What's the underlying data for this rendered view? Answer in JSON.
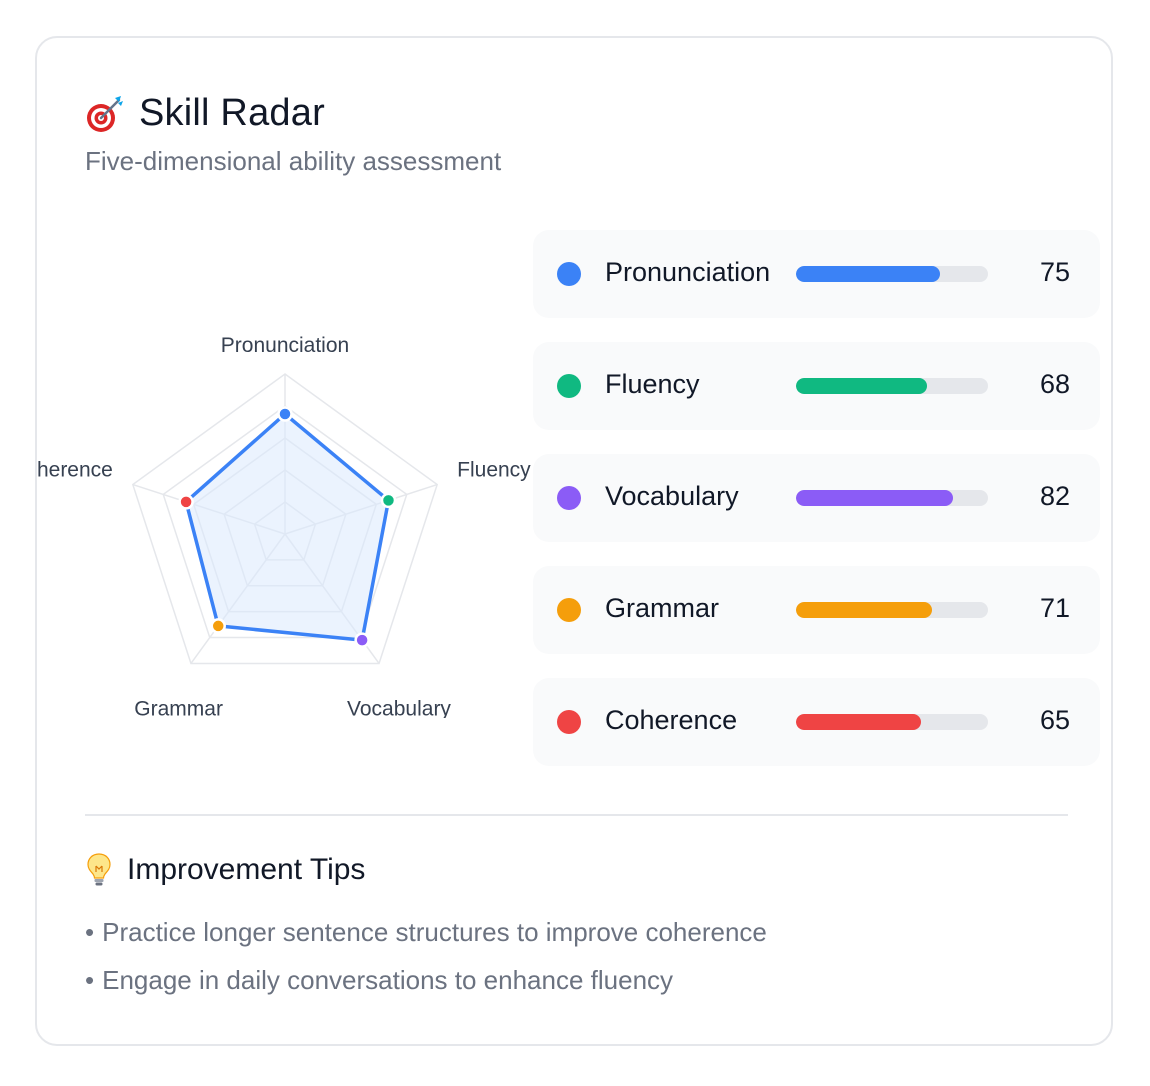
{
  "header": {
    "title": "Skill Radar",
    "subtitle": "Five-dimensional ability assessment",
    "icon": "target-dart-icon"
  },
  "chart_data": {
    "type": "radar",
    "axes": [
      "Pronunciation",
      "Fluency",
      "Vocabulary",
      "Grammar",
      "Coherence"
    ],
    "values": [
      75,
      68,
      82,
      71,
      65
    ],
    "range": [
      0,
      100
    ],
    "grid_levels": 5,
    "colors": [
      "#3b82f6",
      "#10b981",
      "#8b5cf6",
      "#f59e0b",
      "#ef4444"
    ],
    "line_color": "#3b82f6",
    "fill_color": "#dbeafe"
  },
  "skills": [
    {
      "name": "Pronunciation",
      "value": "75",
      "color": "#3b82f6",
      "percent": 75
    },
    {
      "name": "Fluency",
      "value": "68",
      "color": "#10b981",
      "percent": 68
    },
    {
      "name": "Vocabulary",
      "value": "82",
      "color": "#8b5cf6",
      "percent": 82
    },
    {
      "name": "Grammar",
      "value": "71",
      "color": "#f59e0b",
      "percent": 71
    },
    {
      "name": "Coherence",
      "value": "65",
      "color": "#ef4444",
      "percent": 65
    }
  ],
  "tips": {
    "title": "Improvement Tips",
    "icon": "lightbulb-icon",
    "bullet": "•",
    "items": [
      "Practice longer sentence structures to improve coherence",
      "Engage in daily conversations to enhance fluency"
    ]
  }
}
